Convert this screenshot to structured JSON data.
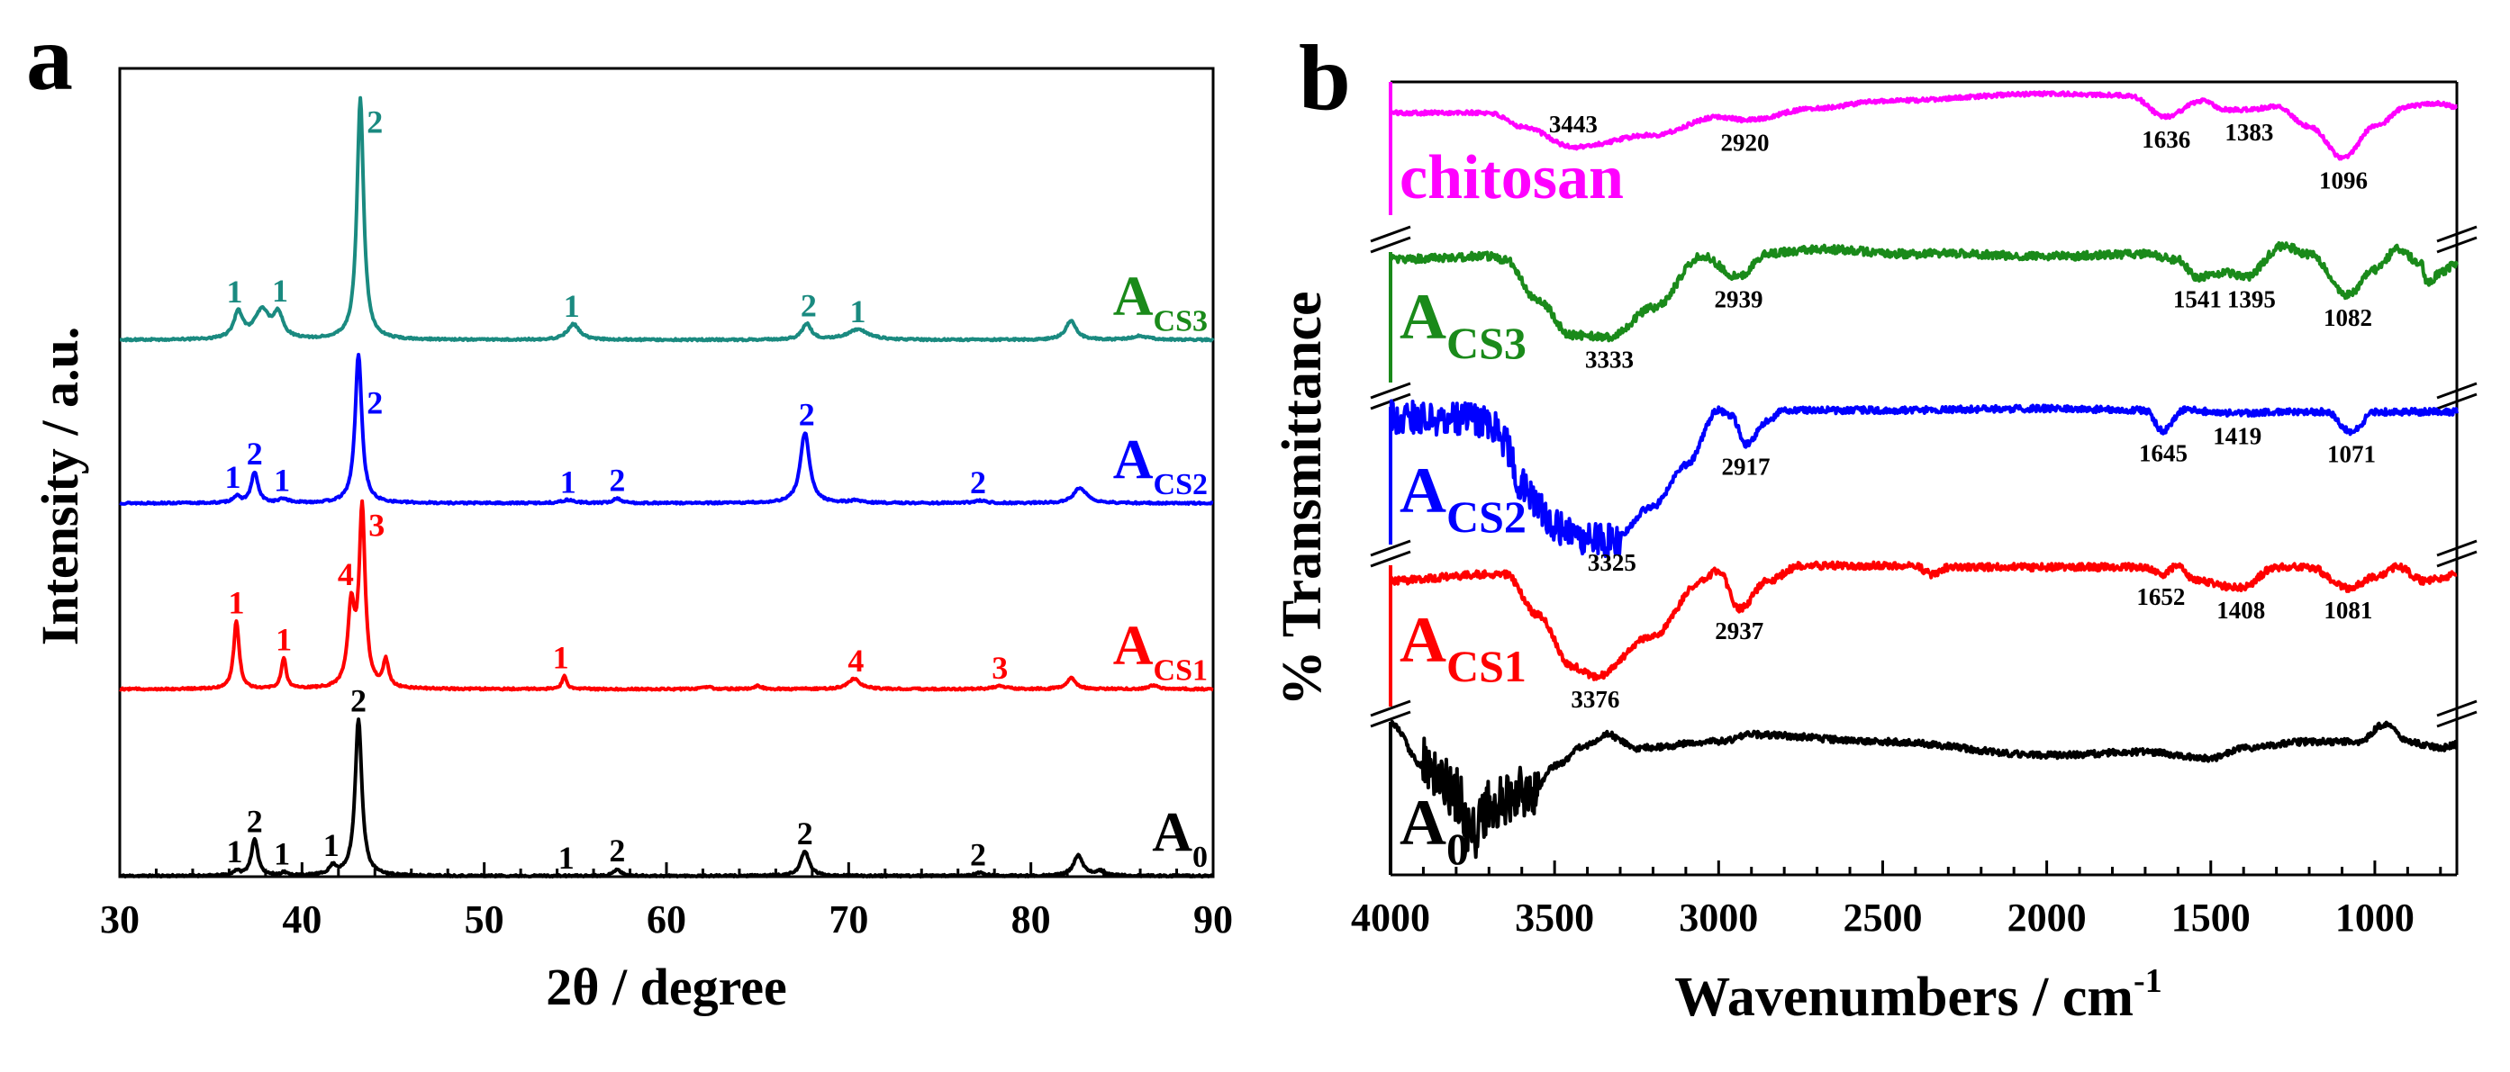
{
  "chart_data": [
    {
      "type": "line",
      "panel_label": "a",
      "xlabel": "2θ / degree",
      "ylabel": "Intensity / a.u.",
      "xlim": [
        30,
        90
      ],
      "ylim": [
        0,
        103
      ],
      "xticks": [
        30,
        40,
        50,
        60,
        70,
        80,
        90
      ],
      "grid": false,
      "series": [
        {
          "name": "A0",
          "label_main": "A",
          "label_sub": "0",
          "color": "#000000",
          "label_color": "#000000",
          "offset": 0.1,
          "noise_level": 0.12,
          "peaks": [
            [
              36.4,
              0.6,
              0.2
            ],
            [
              37.4,
              4.6,
              0.22
            ],
            [
              39.0,
              0.4,
              0.2
            ],
            [
              41.7,
              1.1,
              0.25
            ],
            [
              43.1,
              20,
              0.22
            ],
            [
              57.3,
              0.9,
              0.22
            ],
            [
              67.6,
              3.1,
              0.28
            ],
            [
              77.2,
              0.4,
              0.3
            ],
            [
              82.6,
              2.6,
              0.3
            ],
            [
              83.8,
              0.6,
              0.3
            ]
          ],
          "annotations": [
            {
              "x": 36.3,
              "label": "1"
            },
            {
              "x": 37.4,
              "label": "2"
            },
            {
              "x": 38.9,
              "label": "1"
            },
            {
              "x": 41.6,
              "label": "1"
            },
            {
              "x": 43.1,
              "label": "2"
            },
            {
              "x": 54.5,
              "label": "1"
            },
            {
              "x": 57.3,
              "label": "2"
            },
            {
              "x": 67.6,
              "label": "2"
            },
            {
              "x": 77.1,
              "label": "2"
            }
          ]
        },
        {
          "name": "ACS1",
          "label_main": "A",
          "label_sub": "CS1",
          "color": "#ff0000",
          "label_color": "#ff0000",
          "offset": 23.9,
          "noise_level": 0.12,
          "peaks": [
            [
              36.4,
              8.7,
              0.18
            ],
            [
              39.0,
              3.9,
              0.16
            ],
            [
              42.7,
              10,
              0.22
            ],
            [
              43.3,
              22.6,
              0.2
            ],
            [
              44.6,
              3.4,
              0.18
            ],
            [
              54.4,
              1.7,
              0.15
            ],
            [
              62.2,
              0.3,
              0.3
            ],
            [
              65.0,
              0.4,
              0.25
            ],
            [
              70.3,
              1.3,
              0.4
            ],
            [
              78.3,
              0.4,
              0.4
            ],
            [
              82.2,
              1.4,
              0.3
            ],
            [
              86.7,
              0.5,
              0.3
            ]
          ],
          "annotations": [
            {
              "x": 36.4,
              "label": "1"
            },
            {
              "x": 39.0,
              "label": "1"
            },
            {
              "x": 42.4,
              "label": "4"
            },
            {
              "x": 43.8,
              "label": "3",
              "position": "right"
            },
            {
              "x": 54.2,
              "label": "1"
            },
            {
              "x": 70.4,
              "label": "4"
            },
            {
              "x": 78.3,
              "label": "3"
            }
          ]
        },
        {
          "name": "ACS2",
          "label_main": "A",
          "label_sub": "CS2",
          "color": "#0000ff",
          "label_color": "#0000ff",
          "offset": 47.6,
          "noise_level": 0.12,
          "peaks": [
            [
              36.4,
              0.8,
              0.25
            ],
            [
              37.4,
              3.9,
              0.22
            ],
            [
              39.0,
              0.5,
              0.3
            ],
            [
              43.1,
              19,
              0.22
            ],
            [
              54.6,
              0.4,
              0.4
            ],
            [
              57.3,
              0.6,
              0.25
            ],
            [
              67.6,
              9,
              0.3
            ],
            [
              70.4,
              0.3,
              0.4
            ],
            [
              77.2,
              0.3,
              0.4
            ],
            [
              82.7,
              2,
              0.4
            ]
          ],
          "annotations": [
            {
              "x": 36.2,
              "label": "1"
            },
            {
              "x": 37.4,
              "label": "2"
            },
            {
              "x": 38.9,
              "label": "1"
            },
            {
              "x": 43.7,
              "label": "2",
              "position": "right"
            },
            {
              "x": 54.6,
              "label": "1"
            },
            {
              "x": 57.3,
              "label": "2"
            },
            {
              "x": 67.7,
              "label": "2"
            },
            {
              "x": 77.1,
              "label": "2"
            }
          ]
        },
        {
          "name": "ACS3",
          "label_main": "A",
          "label_sub": "CS3",
          "color": "#1a8a80",
          "label_color": "#1a8a1a",
          "offset": 68.4,
          "noise_level": 0.12,
          "peaks": [
            [
              36.5,
              3.3,
              0.3
            ],
            [
              37.8,
              3.6,
              0.5
            ],
            [
              38.7,
              3.0,
              0.3
            ],
            [
              43.2,
              30.7,
              0.22
            ],
            [
              54.9,
              2.0,
              0.4
            ],
            [
              67.7,
              2.0,
              0.3
            ],
            [
              70.5,
              1.3,
              0.7
            ],
            [
              82.2,
              2.4,
              0.35
            ],
            [
              86.0,
              0.5,
              0.5
            ]
          ],
          "annotations": [
            {
              "x": 36.3,
              "label": "1"
            },
            {
              "x": 38.8,
              "label": "1"
            },
            {
              "x": 43.7,
              "label": "2",
              "position": "right"
            },
            {
              "x": 54.8,
              "label": "1"
            },
            {
              "x": 67.8,
              "label": "2"
            },
            {
              "x": 70.5,
              "label": "1"
            }
          ]
        }
      ]
    },
    {
      "type": "line",
      "panel_label": "b",
      "xlabel": "Wavenumbers / cm",
      "xlabel_sup": "-1",
      "ylabel": "% Transmittance",
      "xlim": [
        4000,
        750
      ],
      "ylim": [
        0,
        100
      ],
      "xticks": [
        4000,
        3500,
        3000,
        2500,
        2000,
        1500,
        1000
      ],
      "grid": false,
      "axis_breaks": true,
      "series": [
        {
          "name": "chitosan",
          "label_main": "chitosan",
          "label_sub": "",
          "color": "#ff00ff",
          "label_color": "#ff00ff",
          "noise_level": 0.25,
          "points": [
            [
              4000,
              96.1
            ],
            [
              3700,
              96.1
            ],
            [
              3600,
              94.4
            ],
            [
              3443,
              91.8
            ],
            [
              3200,
              93.3
            ],
            [
              3000,
              95.6
            ],
            [
              2920,
              95.2
            ],
            [
              2700,
              96.7
            ],
            [
              2500,
              97.6
            ],
            [
              2000,
              98.5
            ],
            [
              1750,
              98.3
            ],
            [
              1636,
              95.6
            ],
            [
              1530,
              97.6
            ],
            [
              1450,
              96.5
            ],
            [
              1383,
              96.5
            ],
            [
              1300,
              96.9
            ],
            [
              1200,
              94.4
            ],
            [
              1096,
              90.4
            ],
            [
              1000,
              94.4
            ],
            [
              900,
              96.9
            ],
            [
              820,
              97.3
            ],
            [
              750,
              96.9
            ]
          ],
          "annotations": [
            {
              "x": 3443,
              "label": "3443"
            },
            {
              "x": 2920,
              "label": "2920"
            },
            {
              "x": 1636,
              "label": "1636"
            },
            {
              "x": 1383,
              "label": "1383"
            },
            {
              "x": 1096,
              "label": "1096"
            }
          ]
        },
        {
          "name": "ACS3",
          "label_main": "A",
          "label_sub": "CS3",
          "color": "#1a8a1a",
          "label_color": "#1a8a1a",
          "noise_level": 0.5,
          "points": [
            [
              4000,
              77.6
            ],
            [
              3700,
              78.0
            ],
            [
              3650,
              77.6
            ],
            [
              3550,
              72.4
            ],
            [
              3450,
              68.1
            ],
            [
              3333,
              67.8
            ],
            [
              3200,
              71.5
            ],
            [
              3050,
              78.0
            ],
            [
              2939,
              75.4
            ],
            [
              2850,
              78.4
            ],
            [
              2700,
              78.9
            ],
            [
              2400,
              78.3
            ],
            [
              2350,
              78.4
            ],
            [
              2000,
              78.0
            ],
            [
              1700,
              78.3
            ],
            [
              1600,
              77.6
            ],
            [
              1541,
              75.4
            ],
            [
              1450,
              75.9
            ],
            [
              1395,
              75.4
            ],
            [
              1280,
              79.3
            ],
            [
              1200,
              78.3
            ],
            [
              1082,
              73.1
            ],
            [
              1000,
              76.3
            ],
            [
              930,
              78.9
            ],
            [
              860,
              77.2
            ],
            [
              840,
              74.6
            ],
            [
              800,
              75.9
            ],
            [
              750,
              77.2
            ]
          ],
          "annotations": [
            {
              "x": 3333,
              "label": "3333"
            },
            {
              "x": 2939,
              "label": "2939"
            },
            {
              "x": 1541,
              "label": "1541"
            },
            {
              "x": 1395,
              "label": "1395"
            },
            {
              "x": 1082,
              "label": "1082"
            }
          ]
        },
        {
          "name": "ACS2",
          "label_main": "A",
          "label_sub": "CS2",
          "color": "#0000ff",
          "label_color": "#0000ff",
          "noise_level": 0.4,
          "noisy_region": [
            4000,
            3300,
            2.2
          ],
          "points": [
            [
              4000,
              57.8
            ],
            [
              3700,
              57.3
            ],
            [
              3650,
              54.3
            ],
            [
              3600,
              49.1
            ],
            [
              3500,
              44.0
            ],
            [
              3400,
              42.2
            ],
            [
              3325,
              42.2
            ],
            [
              3200,
              46.5
            ],
            [
              3100,
              51.7
            ],
            [
              3000,
              58.6
            ],
            [
              2960,
              57.8
            ],
            [
              2917,
              54.3
            ],
            [
              2850,
              57.3
            ],
            [
              2800,
              58.6
            ],
            [
              2500,
              58.6
            ],
            [
              2000,
              58.8
            ],
            [
              1700,
              58.6
            ],
            [
              1645,
              56.0
            ],
            [
              1580,
              58.6
            ],
            [
              1419,
              58.2
            ],
            [
              1300,
              58.4
            ],
            [
              1150,
              58.4
            ],
            [
              1071,
              55.9
            ],
            [
              1000,
              58.4
            ],
            [
              750,
              58.4
            ]
          ],
          "annotations": [
            {
              "x": 3325,
              "label": "3325"
            },
            {
              "x": 2917,
              "label": "2917"
            },
            {
              "x": 1645,
              "label": "1645"
            },
            {
              "x": 1419,
              "label": "1419"
            },
            {
              "x": 1071,
              "label": "1071"
            }
          ]
        },
        {
          "name": "ACS1",
          "label_main": "A",
          "label_sub": "CS1",
          "color": "#ff0000",
          "label_color": "#ff0000",
          "noise_level": 0.45,
          "points": [
            [
              4000,
              37.1
            ],
            [
              3700,
              37.9
            ],
            [
              3650,
              37.9
            ],
            [
              3550,
              32.8
            ],
            [
              3450,
              26.3
            ],
            [
              3376,
              25.0
            ],
            [
              3200,
              30.2
            ],
            [
              3050,
              37.1
            ],
            [
              3000,
              38.4
            ],
            [
              2937,
              33.6
            ],
            [
              2850,
              37.1
            ],
            [
              2750,
              39.0
            ],
            [
              2400,
              39.0
            ],
            [
              2350,
              37.9
            ],
            [
              2300,
              38.8
            ],
            [
              1700,
              38.8
            ],
            [
              1652,
              37.9
            ],
            [
              1600,
              39.0
            ],
            [
              1550,
              37.1
            ],
            [
              1408,
              36.2
            ],
            [
              1300,
              38.8
            ],
            [
              1200,
              38.8
            ],
            [
              1081,
              36.2
            ],
            [
              1000,
              37.5
            ],
            [
              930,
              38.8
            ],
            [
              850,
              37.1
            ],
            [
              750,
              37.8
            ]
          ],
          "annotations": [
            {
              "x": 3376,
              "label": "3376"
            },
            {
              "x": 2937,
              "label": "2937"
            },
            {
              "x": 1652,
              "label": "1652"
            },
            {
              "x": 1408,
              "label": "1408"
            },
            {
              "x": 1081,
              "label": "1081"
            }
          ]
        },
        {
          "name": "A0",
          "label_main": "A",
          "label_sub": "0",
          "color": "#000000",
          "label_color": "#000000",
          "noise_level": 0.4,
          "noisy_region": [
            3900,
            3550,
            3.5
          ],
          "points": [
            [
              4000,
              19.0
            ],
            [
              3900,
              13.8
            ],
            [
              3800,
              10.4
            ],
            [
              3750,
              5.2
            ],
            [
              3700,
              8.6
            ],
            [
              3600,
              10.4
            ],
            [
              3550,
              11.2
            ],
            [
              3500,
              13.8
            ],
            [
              3400,
              16.4
            ],
            [
              3340,
              17.7
            ],
            [
              3250,
              16.0
            ],
            [
              3000,
              16.8
            ],
            [
              2900,
              17.7
            ],
            [
              2500,
              16.8
            ],
            [
              2000,
              15.1
            ],
            [
              1700,
              15.5
            ],
            [
              1500,
              14.7
            ],
            [
              1400,
              16.0
            ],
            [
              1200,
              16.8
            ],
            [
              1050,
              16.8
            ],
            [
              970,
              19.0
            ],
            [
              900,
              16.8
            ],
            [
              800,
              16.0
            ],
            [
              750,
              16.4
            ]
          ],
          "annotations": []
        }
      ]
    }
  ]
}
